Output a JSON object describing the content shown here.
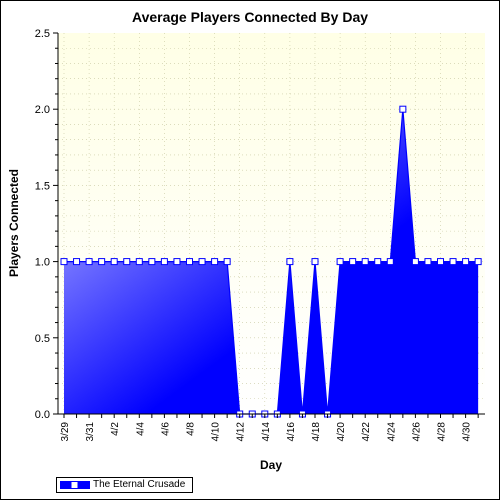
{
  "chart_data": {
    "type": "area",
    "title": "Average Players Connected By Day",
    "xlabel": "Day",
    "ylabel": "Players Connected",
    "ylim": [
      0,
      2.5
    ],
    "yticks": [
      "0.0",
      "0.5",
      "1.0",
      "1.5",
      "2.0",
      "2.5"
    ],
    "x": [
      "3/29",
      "3/30",
      "3/31",
      "4/1",
      "4/2",
      "4/3",
      "4/4",
      "4/5",
      "4/6",
      "4/7",
      "4/8",
      "4/9",
      "4/10",
      "4/11",
      "4/12",
      "4/13",
      "4/14",
      "4/15",
      "4/16",
      "4/17",
      "4/18",
      "4/19",
      "4/20",
      "4/21",
      "4/22",
      "4/23",
      "4/24",
      "4/25",
      "4/26",
      "4/27",
      "4/28",
      "4/29",
      "4/30",
      "5/1"
    ],
    "xtick_labels": [
      "3/29",
      "3/31",
      "4/2",
      "4/4",
      "4/6",
      "4/8",
      "4/10",
      "4/12",
      "4/14",
      "4/16",
      "4/18",
      "4/20",
      "4/22",
      "4/24",
      "4/26",
      "4/28",
      "4/30"
    ],
    "series": [
      {
        "name": "The Eternal Crusade",
        "values": [
          1,
          1,
          1,
          1,
          1,
          1,
          1,
          1,
          1,
          1,
          1,
          1,
          1,
          1,
          0,
          0,
          0,
          0,
          1,
          0,
          1,
          0,
          1,
          1,
          1,
          1,
          1,
          2,
          1,
          1,
          1,
          1,
          1,
          1
        ]
      }
    ],
    "grid": true,
    "legend": "bottom-left",
    "colors": {
      "plot_bg_top": "#ffffe6",
      "plot_bg_bottom": "#ffffff",
      "area_light": "#c8c8ff",
      "area_dark": "#0000ff",
      "line": "#0000ff",
      "marker_fill": "#ffffff",
      "grid": "#c8c8a0"
    }
  }
}
